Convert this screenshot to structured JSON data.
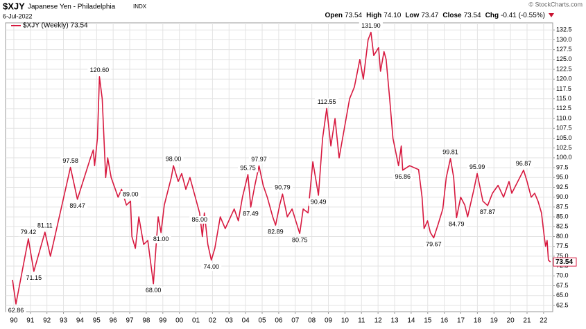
{
  "symbol": "$XJY",
  "name": "Japanese Yen - Philadelphia",
  "exchange": "INDX",
  "date": "6-Jul-2022",
  "watermark": "© StockCharts.com",
  "quote": [
    {
      "label": "Open",
      "value": "73.54"
    },
    {
      "label": "High",
      "value": "74.10"
    },
    {
      "label": "Low",
      "value": "73.47"
    },
    {
      "label": "Close",
      "value": "73.54"
    },
    {
      "label": "Chg",
      "value": "-0.41 (-0.55%)"
    }
  ],
  "chart_data": {
    "type": "line",
    "x": [
      1989.92,
      1990.13,
      1990.88,
      1991.21,
      1991.88,
      1992.21,
      1993.42,
      1993.84,
      1994.63,
      1994.8,
      1994.88,
      1995.05,
      1995.17,
      1995.34,
      1995.55,
      1995.67,
      1995.88,
      1996.3,
      1996.51,
      1996.8,
      1997.05,
      1997.13,
      1997.34,
      1997.55,
      1997.84,
      1998.09,
      1998.43,
      1998.55,
      1998.72,
      1998.89,
      1999.09,
      1999.51,
      1999.64,
      1999.93,
      2000.14,
      2000.39,
      2000.64,
      2001.22,
      2001.39,
      2001.51,
      2001.72,
      2001.93,
      2002.14,
      2002.47,
      2002.77,
      2003.31,
      2003.56,
      2003.81,
      2004.14,
      2004.31,
      2004.56,
      2004.81,
      2005.06,
      2005.31,
      2005.64,
      2005.81,
      2006.06,
      2006.23,
      2006.52,
      2006.81,
      2007.27,
      2007.48,
      2007.77,
      2008.06,
      2008.4,
      2008.65,
      2008.9,
      2009.15,
      2009.4,
      2009.65,
      2010.28,
      2010.57,
      2010.9,
      2011.11,
      2011.4,
      2011.57,
      2011.74,
      2012.03,
      2012.15,
      2012.36,
      2012.49,
      2012.7,
      2012.9,
      2013.24,
      2013.4,
      2013.49,
      2013.91,
      2014.45,
      2014.66,
      2014.78,
      2014.99,
      2015.16,
      2015.36,
      2015.62,
      2015.91,
      2016.12,
      2016.37,
      2016.57,
      2016.74,
      2016.99,
      2017.24,
      2017.41,
      2017.79,
      2017.99,
      2018.33,
      2018.62,
      2018.91,
      2019.25,
      2019.58,
      2019.91,
      2020.08,
      2020.79,
      2021.0,
      2021.25,
      2021.46,
      2021.66,
      2021.87,
      2022.04,
      2022.12,
      2022.21,
      2022.29,
      2022.41
    ],
    "series": [
      {
        "name": "$XJY (Weekly) 73.54",
        "color": "#d7193f",
        "values": [
          69,
          62.86,
          79.42,
          71.15,
          81.11,
          75,
          97.58,
          89.47,
          100,
          102,
          98,
          105,
          120.6,
          115,
          95,
          100,
          95,
          90,
          92,
          88,
          89,
          80,
          77,
          85,
          78,
          79,
          68,
          75,
          85,
          81,
          88,
          95,
          98,
          94,
          96,
          92,
          95,
          86,
          80,
          86,
          78,
          74,
          77,
          85,
          82,
          87,
          84,
          90,
          95.75,
          87.49,
          93,
          97.97,
          93,
          90,
          85,
          82.89,
          88,
          90.79,
          85,
          87,
          80.75,
          87,
          86,
          99,
          90.49,
          105,
          112.55,
          103,
          110,
          100,
          115,
          118,
          125,
          120,
          130,
          131.9,
          126,
          128,
          122,
          127,
          125,
          115,
          105,
          98,
          103,
          96.86,
          98,
          97,
          90,
          82,
          84,
          81,
          79.67,
          83,
          87,
          95,
          99.81,
          95,
          84.79,
          90,
          88,
          85,
          92,
          95.99,
          89,
          87.87,
          91,
          93,
          90,
          94,
          91,
          96.87,
          94,
          90,
          91,
          89,
          86,
          80,
          77.5,
          79,
          74,
          73.54
        ],
        "value_labels": [
          null,
          "62.86",
          "79.42",
          "71.15",
          "81.11",
          null,
          "97.58",
          "89.47",
          null,
          null,
          null,
          null,
          "120.60",
          null,
          null,
          null,
          null,
          null,
          null,
          null,
          "89.00",
          null,
          null,
          null,
          null,
          null,
          "68.00",
          null,
          null,
          "81.00",
          null,
          null,
          "98.00",
          null,
          null,
          null,
          null,
          "86.00",
          null,
          null,
          null,
          "74.00",
          null,
          null,
          null,
          null,
          null,
          null,
          "95.75",
          "87.49",
          null,
          "97.97",
          null,
          null,
          null,
          "82.89",
          null,
          "90.79",
          null,
          null,
          "80.75",
          null,
          null,
          null,
          "90.49",
          null,
          "112.55",
          null,
          null,
          null,
          null,
          null,
          null,
          null,
          null,
          "131.90",
          null,
          null,
          null,
          null,
          null,
          null,
          null,
          null,
          null,
          "96.86",
          null,
          null,
          null,
          null,
          null,
          null,
          "79.67",
          null,
          null,
          null,
          "99.81",
          null,
          "84.79",
          null,
          null,
          null,
          null,
          "95.99",
          null,
          "87.87",
          null,
          null,
          null,
          null,
          null,
          "96.87",
          null,
          null,
          null,
          null,
          null,
          null,
          null,
          null,
          null,
          null
        ]
      }
    ],
    "xlim": [
      1989.5,
      2022.55
    ],
    "ylim": [
      60.9,
      134.3
    ],
    "xticks": [
      {
        "value": 1990,
        "label": "90"
      },
      {
        "value": 1991,
        "label": "91"
      },
      {
        "value": 1992,
        "label": "92"
      },
      {
        "value": 1993,
        "label": "93"
      },
      {
        "value": 1994,
        "label": "94"
      },
      {
        "value": 1995,
        "label": "95"
      },
      {
        "value": 1996,
        "label": "96"
      },
      {
        "value": 1997,
        "label": "97"
      },
      {
        "value": 1998,
        "label": "98"
      },
      {
        "value": 1999,
        "label": "99"
      },
      {
        "value": 2000,
        "label": "00"
      },
      {
        "value": 2001,
        "label": "01"
      },
      {
        "value": 2002,
        "label": "02"
      },
      {
        "value": 2003,
        "label": "03"
      },
      {
        "value": 2004,
        "label": "04"
      },
      {
        "value": 2005,
        "label": "05"
      },
      {
        "value": 2006,
        "label": "06"
      },
      {
        "value": 2007,
        "label": "07"
      },
      {
        "value": 2008,
        "label": "08"
      },
      {
        "value": 2009,
        "label": "09"
      },
      {
        "value": 2010,
        "label": "10"
      },
      {
        "value": 2011,
        "label": "11"
      },
      {
        "value": 2012,
        "label": "12"
      },
      {
        "value": 2013,
        "label": "13"
      },
      {
        "value": 2014,
        "label": "14"
      },
      {
        "value": 2015,
        "label": "15"
      },
      {
        "value": 2016,
        "label": "16"
      },
      {
        "value": 2017,
        "label": "17"
      },
      {
        "value": 2018,
        "label": "18"
      },
      {
        "value": 2019,
        "label": "19"
      },
      {
        "value": 2020,
        "label": "20"
      },
      {
        "value": 2021,
        "label": "21"
      },
      {
        "value": 2022,
        "label": "22"
      }
    ],
    "yticks": [
      62.5,
      {
        "value": 65,
        "label": "65.0"
      },
      67.5,
      {
        "value": 70,
        "label": "70.0"
      },
      72.5,
      {
        "value": 75,
        "label": "75.0"
      },
      77.5,
      {
        "value": 80,
        "label": "80.0"
      },
      82.5,
      {
        "value": 85,
        "label": "85.0"
      },
      87.5,
      {
        "value": 90,
        "label": "90.0"
      },
      92.5,
      {
        "value": 95,
        "label": "95.0"
      },
      97.5,
      {
        "value": 100,
        "label": "100.0"
      },
      102.5,
      {
        "value": 105,
        "label": "105.0"
      },
      107.5,
      {
        "value": 110,
        "label": "110.0"
      },
      112.5,
      {
        "value": 115,
        "label": "115.0"
      },
      117.5,
      {
        "value": 120,
        "label": "120.0"
      },
      122.5,
      {
        "value": 125,
        "label": "125.0"
      },
      127.5,
      {
        "value": 130,
        "label": "130.0"
      },
      132.5
    ],
    "grid": true
  }
}
